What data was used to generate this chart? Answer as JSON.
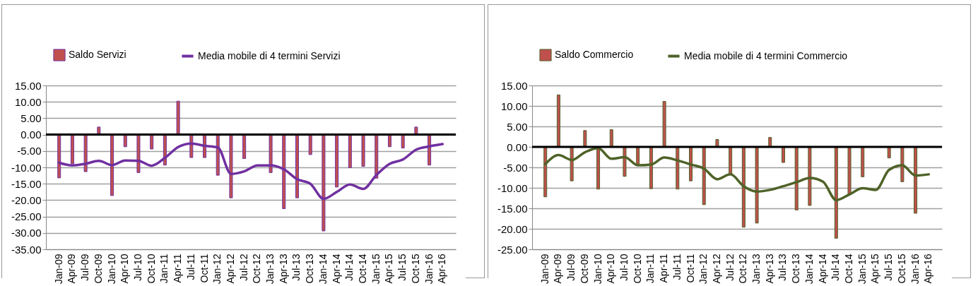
{
  "chart_data": [
    {
      "type": "bar",
      "categories": [
        "Jan-09",
        "Apr-09",
        "Jul-09",
        "Oct-09",
        "Jan-10",
        "Apr-10",
        "Jul-10",
        "Oct-10",
        "Jan-11",
        "Apr-11",
        "Jul-11",
        "Oct-11",
        "Jan-12",
        "Apr-12",
        "Jul-12",
        "Oct-12",
        "Jan-13",
        "Apr-13",
        "Jul-13",
        "Oct-13",
        "Jan-14",
        "Apr-14",
        "Jul-14",
        "Oct-14",
        "Jan-15",
        "Apr-15",
        "Jul-15",
        "Oct-15",
        "Jan-16",
        "Apr-16"
      ],
      "series": [
        {
          "name": "Saldo Servizi",
          "color": "#c0504d",
          "values": [
            -13.2,
            -8.9,
            -11.3,
            2.3,
            -18.6,
            -3.7,
            -11.6,
            -4.4,
            -9.3,
            10.2,
            -7.0,
            -7.0,
            -12.4,
            -19.3,
            -7.3,
            null,
            -11.6,
            -22.6,
            -19.3,
            -6.1,
            -29.4,
            -16.0,
            -10.1,
            -9.7,
            -13.3,
            -3.7,
            -4.1,
            2.3,
            -9.3,
            null
          ]
        },
        {
          "name": "Media mobile di 4 termini Servizi",
          "type": "line",
          "color": "#7030a0",
          "values": [
            -8.6,
            -9.4,
            -8.9,
            -8.0,
            -9.3,
            -7.9,
            -8.0,
            -9.5,
            -7.1,
            -3.8,
            -2.7,
            -3.4,
            -3.9,
            -12.0,
            -11.2,
            -9.4,
            -9.4,
            -10.6,
            -13.6,
            -15.0,
            -19.6,
            -17.5,
            -15.2,
            -16.6,
            -12.3,
            -8.9,
            -7.6,
            -4.6,
            -3.6,
            -2.9
          ]
        }
      ],
      "ylim": [
        -35,
        15
      ],
      "yticks": [
        {
          "value": -35,
          "label": "-35.00"
        },
        {
          "value": -30,
          "label": "-30.00"
        },
        {
          "value": -25,
          "label": "-25.00"
        },
        {
          "value": -20,
          "label": "-20.00"
        },
        {
          "value": -15,
          "label": "-15.00"
        },
        {
          "value": -10,
          "label": "-10.00"
        },
        {
          "value": -5,
          "label": "-5.00"
        },
        {
          "value": 0,
          "label": "0.00"
        },
        {
          "value": 5,
          "label": "5.00"
        },
        {
          "value": 10,
          "label": "10.00"
        },
        {
          "value": 15,
          "label": "15.00"
        }
      ],
      "ref_lines": [
        {
          "axis": "y",
          "value": 0,
          "color": "#000000"
        }
      ],
      "grid": "y",
      "legend": "top"
    },
    {
      "type": "bar",
      "categories": [
        "Jan-09",
        "Apr-09",
        "Jul-09",
        "Oct-09",
        "Jan-10",
        "Apr-10",
        "Jul-10",
        "Oct-10",
        "Jan-11",
        "Apr-11",
        "Jul-11",
        "Oct-11",
        "Jan-12",
        "Apr-12",
        "Jul-12",
        "Oct-12",
        "Jan-13",
        "Apr-13",
        "Jul-13",
        "Oct-13",
        "Jan-14",
        "Apr-14",
        "Jul-14",
        "Oct-14",
        "Jan-15",
        "Apr-15",
        "Jul-15",
        "Oct-15",
        "Jan-16",
        "Apr-16"
      ],
      "series": [
        {
          "name": "Saldo Commercio",
          "color": "#c0504d",
          "values": [
            -12.2,
            12.7,
            -8.3,
            4.0,
            -10.3,
            4.2,
            -7.2,
            -4.2,
            -10.2,
            11.1,
            -10.3,
            -8.3,
            -14.1,
            1.8,
            -6.6,
            -19.6,
            -18.6,
            2.3,
            -3.8,
            -15.4,
            -14.3,
            null,
            -22.3,
            -11.6,
            -7.3,
            null,
            -2.7,
            -8.5,
            -16.2,
            null
          ]
        },
        {
          "name": "Media mobile di 4 termini Commercio",
          "type": "line",
          "color": "#4f6228",
          "values": [
            -4.2,
            -2.0,
            -3.2,
            -1.3,
            -0.3,
            -2.9,
            -2.5,
            -4.5,
            -4.3,
            -2.6,
            -3.3,
            -4.3,
            -5.3,
            -7.9,
            -6.7,
            -9.6,
            -10.9,
            -10.5,
            -9.6,
            -8.6,
            -7.6,
            -8.5,
            -13.0,
            -11.6,
            -10.1,
            -10.5,
            -5.6,
            -4.5,
            -7.0,
            -6.7
          ]
        }
      ],
      "ylim": [
        -25,
        15
      ],
      "yticks": [
        {
          "value": -25,
          "label": "-25.00"
        },
        {
          "value": -20,
          "label": "-20.00"
        },
        {
          "value": -15,
          "label": "-15.00"
        },
        {
          "value": -10,
          "label": "-10.00"
        },
        {
          "value": -5,
          "label": "-5.00"
        },
        {
          "value": 0,
          "label": "0.00"
        },
        {
          "value": 5,
          "label": "5.00"
        },
        {
          "value": 10,
          "label": "10.00"
        },
        {
          "value": 15,
          "label": "15.00"
        }
      ],
      "ref_lines": [
        {
          "axis": "y",
          "value": 0,
          "color": "#000000"
        }
      ],
      "grid": "y",
      "legend": "top"
    }
  ]
}
